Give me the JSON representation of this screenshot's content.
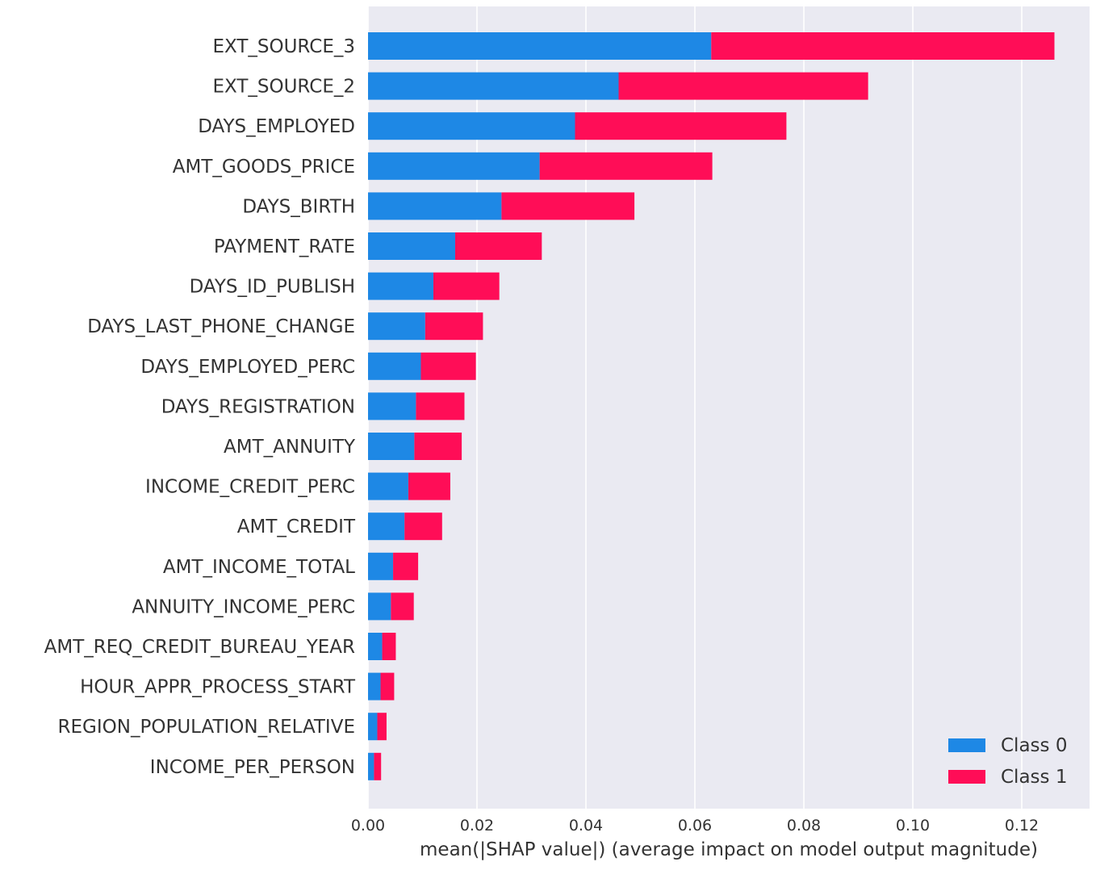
{
  "chart_data": {
    "type": "bar",
    "orientation": "horizontal",
    "stacked": true,
    "title": "",
    "xlabel": "mean(|SHAP value|) (average impact on model output magnitude)",
    "ylabel": "",
    "xlim": [
      0,
      0.13
    ],
    "xticks": [
      0.0,
      0.02,
      0.04,
      0.06,
      0.08,
      0.1,
      0.12
    ],
    "xtick_labels": [
      "0.00",
      "0.02",
      "0.04",
      "0.06",
      "0.08",
      "0.10",
      "0.12"
    ],
    "grid": true,
    "legend_position": "bottom-right",
    "categories": [
      "EXT_SOURCE_3",
      "EXT_SOURCE_2",
      "DAYS_EMPLOYED",
      "AMT_GOODS_PRICE",
      "DAYS_BIRTH",
      "PAYMENT_RATE",
      "DAYS_ID_PUBLISH",
      "DAYS_LAST_PHONE_CHANGE",
      "DAYS_EMPLOYED_PERC",
      "DAYS_REGISTRATION",
      "AMT_ANNUITY",
      "INCOME_CREDIT_PERC",
      "AMT_CREDIT",
      "AMT_INCOME_TOTAL",
      "ANNUITY_INCOME_PERC",
      "AMT_REQ_CREDIT_BUREAU_YEAR",
      "HOUR_APPR_PROCESS_START",
      "REGION_POPULATION_RELATIVE",
      "INCOME_PER_PERSON"
    ],
    "series": [
      {
        "name": "Class 0",
        "color": "#1e88e5",
        "values": [
          0.063,
          0.046,
          0.038,
          0.0315,
          0.0245,
          0.016,
          0.012,
          0.0105,
          0.0097,
          0.0088,
          0.0085,
          0.0074,
          0.0067,
          0.0046,
          0.0042,
          0.0026,
          0.0023,
          0.0017,
          0.0011
        ]
      },
      {
        "name": "Class 1",
        "color": "#ff0d57",
        "values": [
          0.063,
          0.0458,
          0.0388,
          0.0317,
          0.0244,
          0.0159,
          0.0121,
          0.0106,
          0.0101,
          0.0089,
          0.0087,
          0.0077,
          0.0069,
          0.0046,
          0.0042,
          0.0025,
          0.0025,
          0.0017,
          0.0013
        ]
      }
    ]
  }
}
